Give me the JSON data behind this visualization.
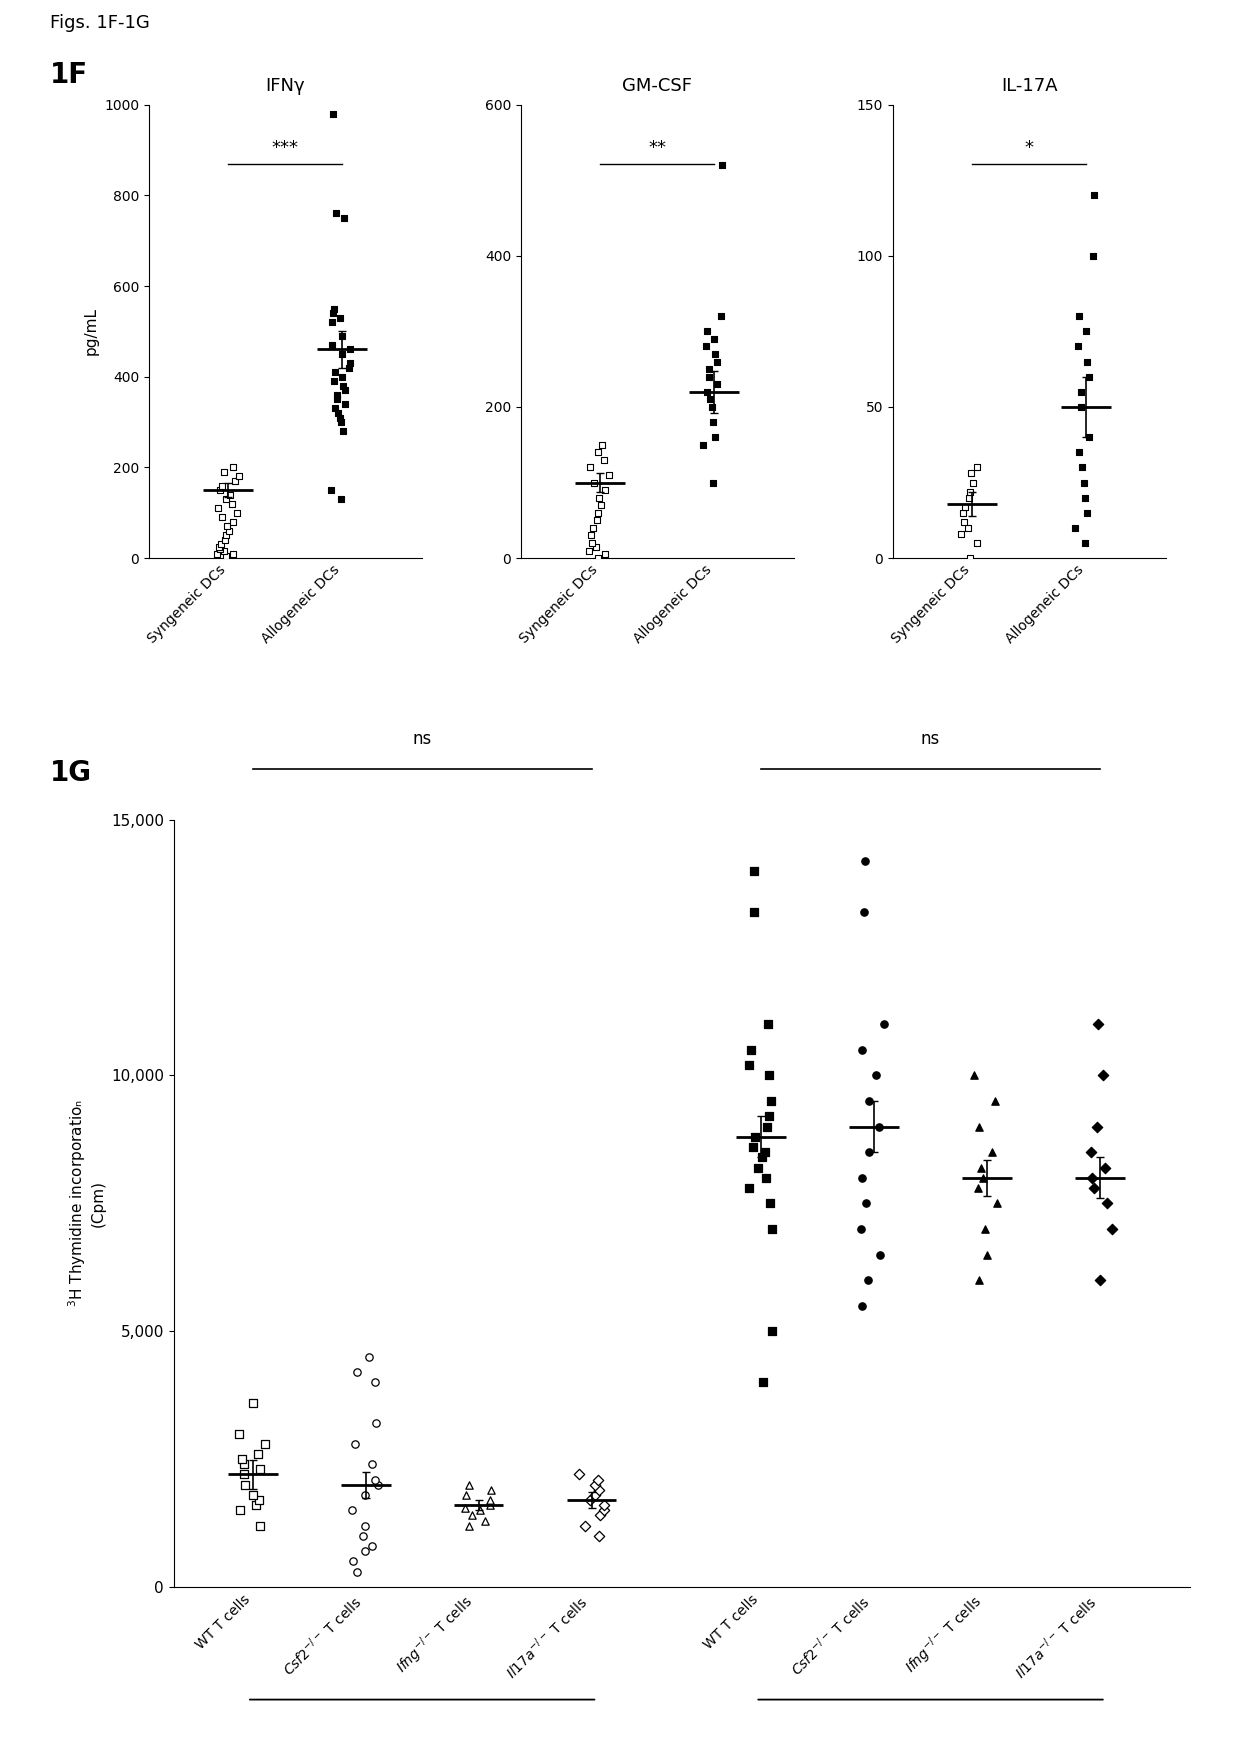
{
  "fig_label": "Figs. 1F-1G",
  "panel_1F_label": "1F",
  "panel_1G_label": "1G",
  "ifng_title": "IFNγ",
  "gmcsf_title": "GM-CSF",
  "il17a_title": "IL-17A",
  "ylabel_1F": "pg/mL",
  "ifng_syn": [
    5,
    8,
    10,
    15,
    20,
    25,
    30,
    40,
    50,
    60,
    70,
    80,
    90,
    100,
    110,
    120,
    130,
    140,
    150,
    160,
    170,
    180,
    190,
    200
  ],
  "ifng_allo": [
    130,
    150,
    280,
    300,
    310,
    320,
    330,
    340,
    350,
    360,
    370,
    380,
    390,
    400,
    410,
    420,
    430,
    450,
    460,
    470,
    490,
    520,
    530,
    540,
    550,
    750,
    760,
    980
  ],
  "ifng_syn_mean": 150,
  "ifng_allo_mean": 460,
  "ifng_syn_sem": 15,
  "ifng_allo_sem": 40,
  "ifng_sig": "***",
  "ifng_ylim": [
    0,
    1000
  ],
  "ifng_yticks": [
    0,
    200,
    400,
    600,
    800,
    1000
  ],
  "gmcsf_syn": [
    0,
    5,
    10,
    15,
    20,
    30,
    40,
    50,
    60,
    70,
    80,
    90,
    100,
    110,
    120,
    130,
    140,
    150
  ],
  "gmcsf_allo": [
    100,
    150,
    160,
    180,
    200,
    210,
    220,
    230,
    240,
    250,
    260,
    270,
    280,
    290,
    300,
    320,
    520
  ],
  "gmcsf_syn_mean": 100,
  "gmcsf_allo_mean": 220,
  "gmcsf_syn_sem": 12,
  "gmcsf_allo_sem": 28,
  "gmcsf_sig": "**",
  "gmcsf_ylim": [
    0,
    600
  ],
  "gmcsf_yticks": [
    0,
    200,
    400,
    600
  ],
  "il17a_syn": [
    0,
    5,
    8,
    10,
    12,
    15,
    17,
    20,
    22,
    25,
    28,
    30
  ],
  "il17a_allo": [
    5,
    10,
    15,
    20,
    25,
    30,
    35,
    40,
    50,
    55,
    60,
    65,
    70,
    75,
    80,
    100,
    120
  ],
  "il17a_syn_mean": 18,
  "il17a_allo_mean": 50,
  "il17a_syn_sem": 4,
  "il17a_allo_sem": 10,
  "il17a_sig": "*",
  "il17a_ylim": [
    0,
    150
  ],
  "il17a_yticks": [
    0,
    50,
    100,
    150
  ],
  "ylabel_1G": "$^{3}$H Thymidine incorporatioₙ\n(Cpm)",
  "g_wt_syn": [
    1200,
    1500,
    1600,
    1700,
    1800,
    2000,
    2200,
    2300,
    2400,
    2500,
    2600,
    2800,
    3000,
    3600
  ],
  "g_csf2_syn": [
    300,
    500,
    700,
    800,
    1000,
    1200,
    1500,
    1800,
    2000,
    2100,
    2400,
    2800,
    3200,
    4000,
    4200,
    4500
  ],
  "g_ifng_syn": [
    1200,
    1300,
    1400,
    1500,
    1550,
    1600,
    1700,
    1800,
    1900,
    2000
  ],
  "g_il17a_syn": [
    1000,
    1200,
    1400,
    1500,
    1600,
    1700,
    1800,
    1900,
    2000,
    2100,
    2200
  ],
  "g_wt_allo": [
    4000,
    5000,
    7000,
    7500,
    7800,
    8000,
    8200,
    8400,
    8500,
    8600,
    8800,
    9000,
    9200,
    9500,
    10000,
    10200,
    10500,
    11000,
    13200,
    14000
  ],
  "g_csf2_allo": [
    5500,
    6000,
    6500,
    7000,
    7500,
    8000,
    8500,
    9000,
    9500,
    10000,
    10500,
    11000,
    13200,
    14200
  ],
  "g_ifng_allo": [
    6000,
    6500,
    7000,
    7500,
    7800,
    8000,
    8200,
    8500,
    9000,
    9500,
    10000
  ],
  "g_il17a_allo": [
    6000,
    7000,
    7500,
    7800,
    8000,
    8200,
    8500,
    9000,
    10000,
    11000
  ],
  "g_wt_syn_mean": 2200,
  "g_csf2_syn_mean": 2000,
  "g_ifng_syn_mean": 1600,
  "g_il17a_syn_mean": 1700,
  "g_wt_allo_mean": 8800,
  "g_csf2_allo_mean": 9000,
  "g_ifng_allo_mean": 8000,
  "g_il17a_allo_mean": 8000,
  "g_wt_syn_sem": 280,
  "g_csf2_syn_sem": 250,
  "g_ifng_syn_sem": 100,
  "g_il17a_syn_sem": 150,
  "g_wt_allo_sem": 400,
  "g_csf2_allo_sem": 500,
  "g_ifng_allo_sem": 350,
  "g_il17a_allo_sem": 400,
  "g_ylim": [
    0,
    15000
  ],
  "g_yticks": [
    0,
    5000,
    10000,
    15000
  ],
  "background_color": "#ffffff"
}
